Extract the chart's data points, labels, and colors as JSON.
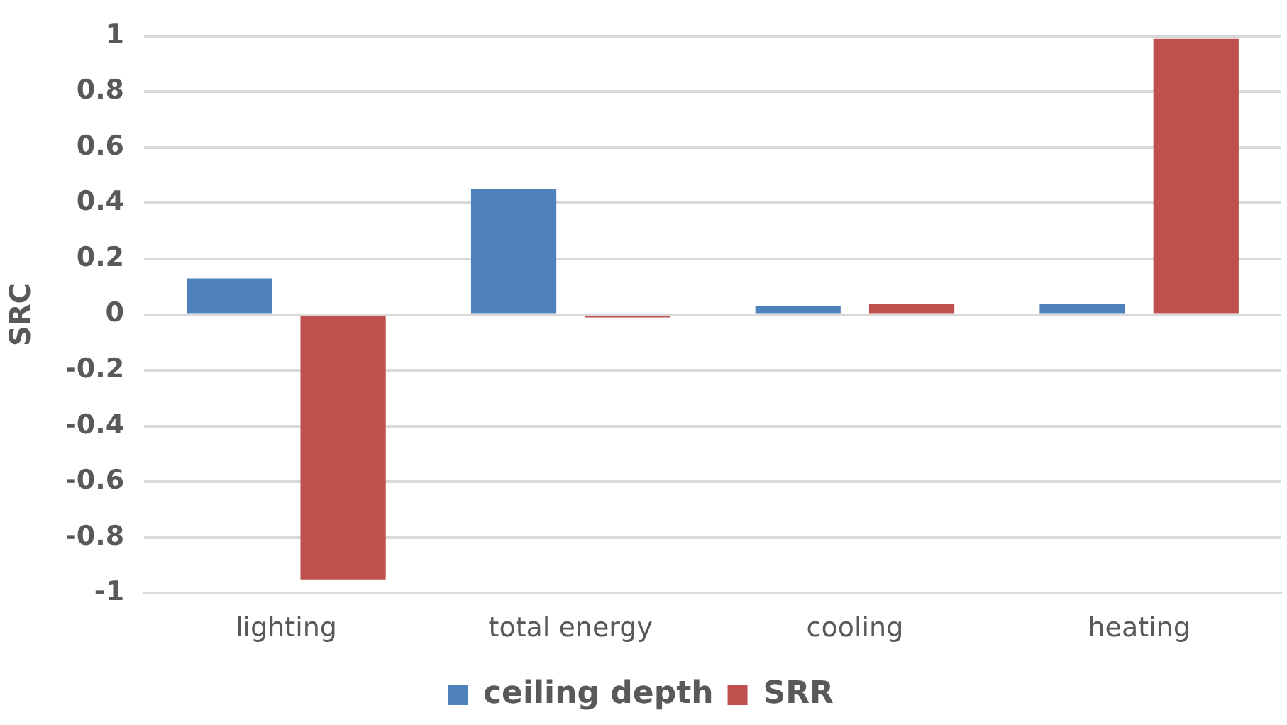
{
  "chart_data": {
    "type": "bar",
    "ylabel": "SRC",
    "categories": [
      "lighting",
      "total energy",
      "cooling",
      "heating"
    ],
    "series": [
      {
        "name": "ceiling depth",
        "color": "#4f81bd",
        "values": [
          0.13,
          0.45,
          0.03,
          0.04
        ]
      },
      {
        "name": "SRR",
        "color": "#c0504d",
        "values": [
          -0.95,
          -0.01,
          0.04,
          0.99
        ]
      }
    ],
    "ylim": [
      -1,
      1
    ],
    "yticks": [
      -1,
      -0.8,
      -0.6,
      -0.4,
      -0.2,
      0,
      0.2,
      0.4,
      0.6,
      0.8,
      1
    ],
    "grid": "y",
    "legend": "bottom"
  }
}
